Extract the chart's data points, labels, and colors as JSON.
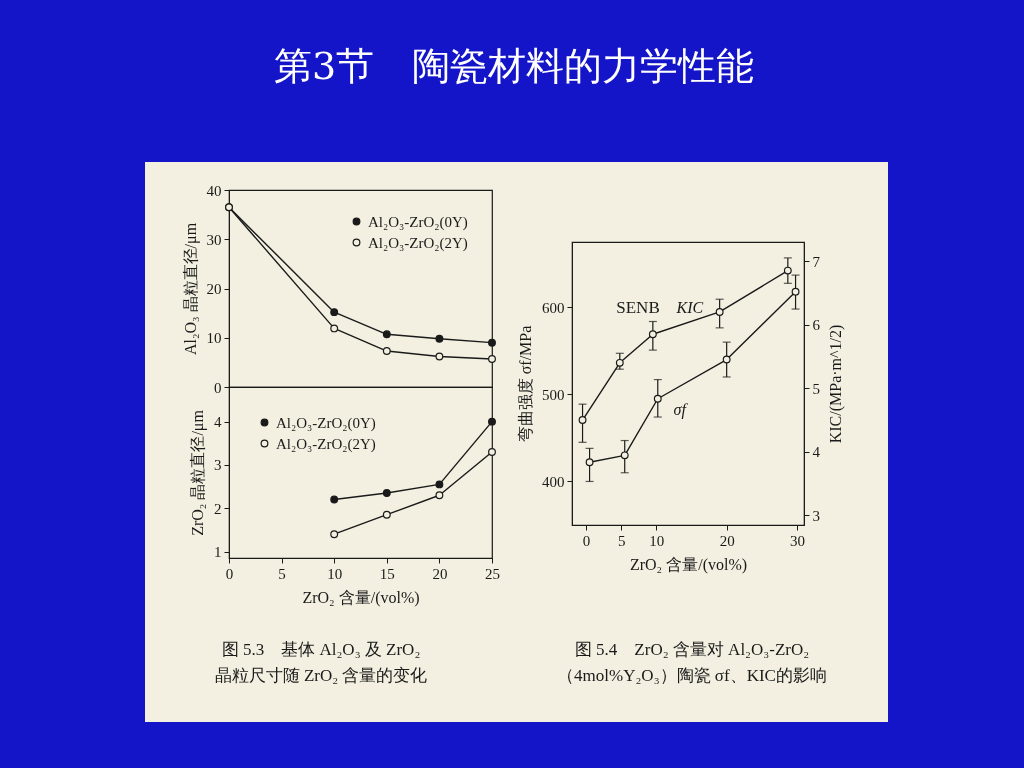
{
  "chart_data": [
    {
      "type": "other",
      "title": "第3节　陶瓷材料的力学性能"
    },
    {
      "type": "line",
      "ylabel": "Al₂O₃ 晶粒直径/μm",
      "x": [
        0,
        10,
        15,
        20,
        25
      ],
      "xlim": [
        0,
        25
      ],
      "ylim": [
        0,
        40
      ],
      "yticks": [
        0,
        10,
        20,
        30,
        40
      ],
      "tick_labels": "y",
      "marker": "circle",
      "legend": "top right",
      "series": [
        {
          "name": "Al₂O₃-ZrO₂(0Y)",
          "color": "#1a1a1a",
          "values": [
            36.5,
            15.2,
            10.7,
            9.8,
            9.0
          ]
        },
        {
          "name": "Al₂O₃-ZrO₂(2Y)",
          "color": "#1a1a1a",
          "values": [
            36.5,
            11.9,
            7.3,
            6.2,
            5.7
          ]
        }
      ]
    },
    {
      "type": "line",
      "xlabel": "ZrO₂ 含量/(vol%)",
      "ylabel": "ZrO₂ 晶粒直径/μm",
      "x": [
        10,
        15,
        20,
        25
      ],
      "xlim": [
        0,
        25
      ],
      "xticks": [
        0,
        5,
        10,
        15,
        20,
        25
      ],
      "ylim": [
        0.85,
        4.8
      ],
      "yticks": [
        1,
        2,
        3,
        4
      ],
      "marker": "circle",
      "legend": "top left",
      "series": [
        {
          "name": "Al₂O₃-ZrO₂(0Y)",
          "color": "#1a1a1a",
          "values": [
            2.2,
            2.35,
            2.55,
            4.0
          ]
        },
        {
          "name": "Al₂O₃-ZrO₂(2Y)",
          "color": "#1a1a1a",
          "values": [
            1.4,
            1.85,
            2.3,
            3.3
          ]
        }
      ],
      "annotations": [
        "图 5.3　基体 Al₂O₃ 及 ZrO₂",
        "晶粒尺寸随 ZrO₂ 含量的变化"
      ]
    },
    {
      "type": "line",
      "xlabel": "ZrO₂ 含量/(vol%)",
      "ylabel": "弯曲强度 σf/MPa",
      "y2label": "KIC/(MPa·m^1/2)",
      "xlim": [
        -2,
        31
      ],
      "xticks": [
        0,
        5,
        10,
        20,
        30
      ],
      "ylim": [
        350,
        675
      ],
      "yticks": [
        400,
        500,
        600
      ],
      "y2lim": [
        2.85,
        7.3
      ],
      "y2ticks": [
        3,
        4,
        5,
        6,
        7
      ],
      "marker": "circle",
      "series": [
        {
          "name": "KIC",
          "axis": "y2",
          "color": "#1a1a1a",
          "x": [
            -0.5,
            4.8,
            9.5,
            19,
            28.7
          ],
          "values": [
            4.5,
            5.4,
            5.85,
            6.2,
            6.85
          ],
          "errors": [
            [
              4.15,
              4.75
            ],
            [
              5.3,
              5.55
            ],
            [
              5.6,
              6.05
            ],
            [
              5.95,
              6.4
            ],
            [
              6.65,
              7.05
            ]
          ]
        },
        {
          "name": "σf",
          "color": "#1a1a1a",
          "x": [
            0.5,
            5.5,
            10.2,
            20,
            29.8
          ],
          "values": [
            422,
            430,
            495,
            540,
            618
          ],
          "errors": [
            [
              400,
              438
            ],
            [
              410,
              447
            ],
            [
              474,
              517
            ],
            [
              520,
              560
            ],
            [
              598,
              637
            ]
          ]
        }
      ],
      "annotations": [
        "SENB",
        "图 5.4　ZrO₂ 含量对 Al₂O₃-ZrO₂",
        "（4mol%Y₂O₃）陶瓷 σf、KIC的影响"
      ]
    }
  ]
}
